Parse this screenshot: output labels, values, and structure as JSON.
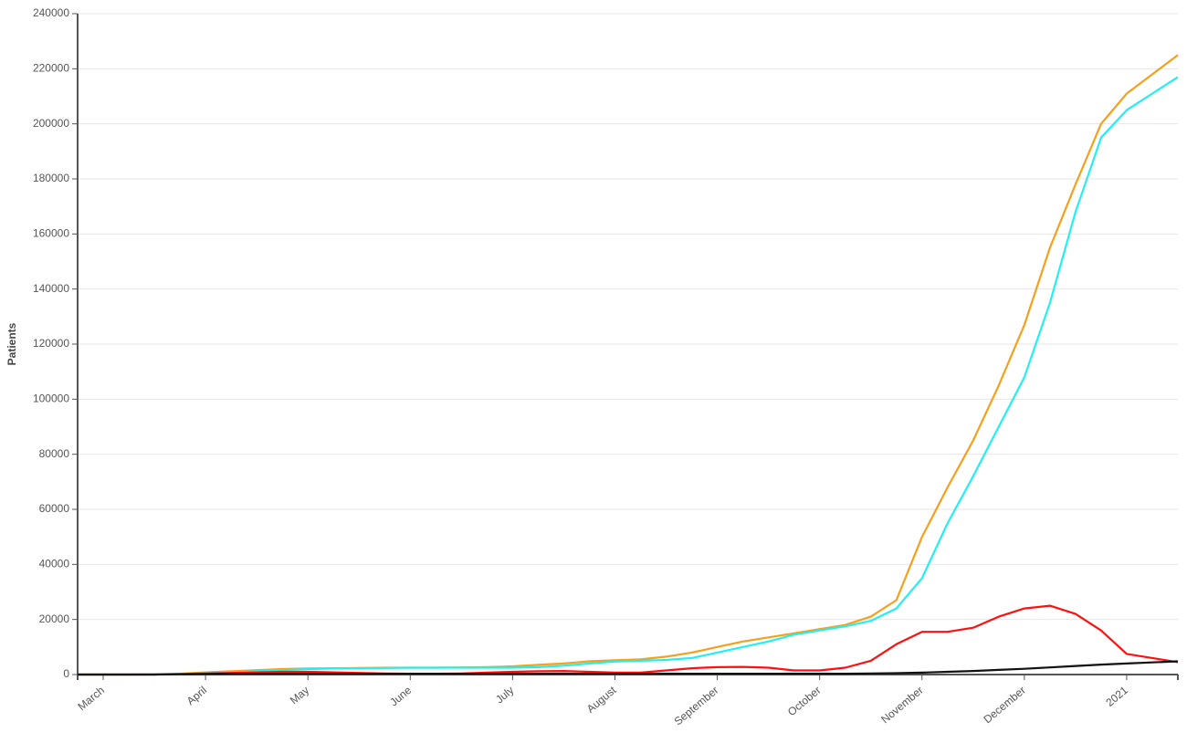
{
  "chart_data": {
    "type": "line",
    "y_label": "Patients",
    "categories": [
      null,
      "March",
      null,
      null,
      null,
      "April",
      null,
      null,
      null,
      "May",
      null,
      null,
      null,
      "June",
      null,
      null,
      null,
      "July",
      null,
      null,
      null,
      "August",
      null,
      null,
      null,
      "September",
      null,
      null,
      null,
      "October",
      null,
      null,
      null,
      "November",
      null,
      null,
      null,
      "December",
      null,
      null,
      null,
      "2021",
      null,
      null
    ],
    "series": [
      {
        "color": "#f5a01a",
        "values": [
          0,
          0,
          0,
          100,
          300,
          800,
          1200,
          1600,
          2000,
          2200,
          2300,
          2400,
          2500,
          2500,
          2500,
          2600,
          2700,
          3000,
          3500,
          4000,
          4800,
          5200,
          5500,
          6500,
          8000,
          10000,
          12000,
          13500,
          15000,
          16500,
          18000,
          21000,
          27000,
          50000,
          68000,
          85000,
          105000,
          127000,
          155000,
          178000,
          200000,
          211000,
          218000,
          225000
        ]
      },
      {
        "color": "#22f0f0",
        "values": [
          0,
          0,
          0,
          0,
          100,
          500,
          800,
          1200,
          1600,
          2000,
          2200,
          2300,
          2400,
          2500,
          2500,
          2500,
          2500,
          2500,
          2700,
          3200,
          4000,
          4700,
          5000,
          5300,
          6000,
          8000,
          10000,
          12000,
          14500,
          16000,
          17500,
          19500,
          24000,
          35000,
          55000,
          72000,
          90000,
          108000,
          135000,
          168000,
          195000,
          205000,
          211000,
          217000
        ]
      },
      {
        "color": "#ff1010",
        "values": [
          0,
          0,
          0,
          0,
          200,
          400,
          600,
          800,
          1000,
          1000,
          800,
          600,
          400,
          300,
          300,
          400,
          700,
          1000,
          1200,
          1300,
          1000,
          700,
          700,
          1500,
          2300,
          2700,
          2800,
          2500,
          1500,
          1500,
          2500,
          5000,
          11000,
          15500,
          15500,
          17000,
          21000,
          24000,
          25000,
          22000,
          16000,
          7500,
          6000,
          4500
        ]
      },
      {
        "color": "#111111",
        "values": [
          0,
          0,
          0,
          0,
          100,
          200,
          300,
          300,
          300,
          300,
          300,
          300,
          300,
          300,
          300,
          300,
          300,
          300,
          300,
          300,
          300,
          300,
          300,
          300,
          300,
          300,
          300,
          300,
          300,
          300,
          300,
          400,
          500,
          700,
          1000,
          1300,
          1700,
          2100,
          2600,
          3100,
          3600,
          4000,
          4400,
          4800
        ]
      }
    ],
    "ylim": [
      0,
      240000
    ],
    "yticks": [
      0,
      20000,
      40000,
      60000,
      80000,
      100000,
      120000,
      140000,
      160000,
      180000,
      200000,
      220000,
      240000
    ],
    "grid": true
  }
}
